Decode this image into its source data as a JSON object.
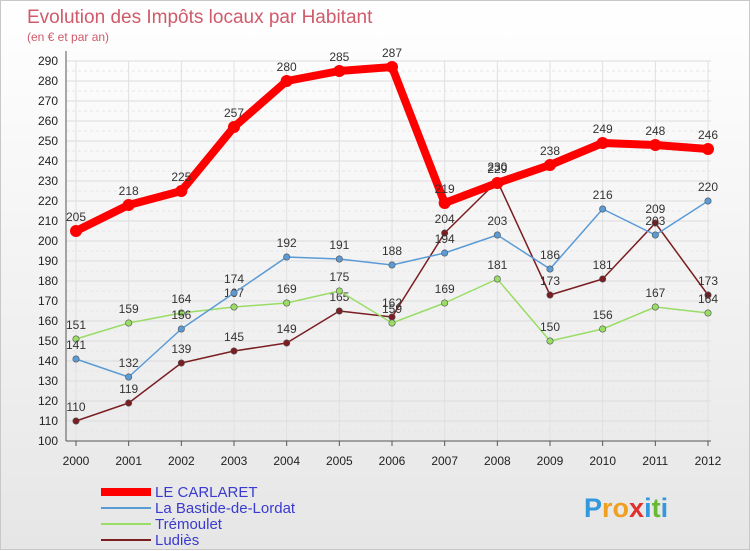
{
  "chart_data": {
    "type": "line",
    "title": "Evolution des Impôts locaux par Habitant",
    "subtitle": "(en € et par an)",
    "xlabel": "",
    "ylabel": "",
    "categories": [
      "2000",
      "2001",
      "2002",
      "2003",
      "2004",
      "2005",
      "2006",
      "2007",
      "2008",
      "2009",
      "2010",
      "2011",
      "2012"
    ],
    "ylim": [
      100,
      290
    ],
    "yticks": [
      100,
      110,
      120,
      130,
      140,
      150,
      160,
      170,
      180,
      190,
      200,
      210,
      220,
      230,
      240,
      250,
      260,
      270,
      280,
      290
    ],
    "grid": true,
    "series": [
      {
        "name": "LE CARLARET",
        "color": "#ff0000",
        "values": [
          205,
          218,
          225,
          257,
          280,
          285,
          287,
          219,
          229,
          238,
          249,
          248,
          246
        ]
      },
      {
        "name": "La Bastide-de-Lordat",
        "color": "#5b9bd5",
        "values": [
          141,
          132,
          156,
          174,
          192,
          191,
          188,
          194,
          203,
          186,
          216,
          203,
          220
        ]
      },
      {
        "name": "Trémoulet",
        "color": "#99dd66",
        "values": [
          151,
          159,
          164,
          167,
          169,
          175,
          159,
          169,
          181,
          150,
          156,
          167,
          164
        ]
      },
      {
        "name": "Ludiès",
        "color": "#7a1e22",
        "values": [
          110,
          119,
          139,
          145,
          149,
          165,
          162,
          204,
          230,
          173,
          181,
          209,
          173
        ]
      }
    ],
    "legend_position": "bottom-left"
  },
  "branding": {
    "logo_letters": [
      "P",
      "r",
      "o",
      "x",
      "i",
      "t",
      "i"
    ],
    "logo_colors": [
      "#3399dd",
      "#f0a020",
      "#f0a020",
      "#e03030",
      "#3399dd",
      "#66bb33",
      "#3399dd"
    ]
  }
}
